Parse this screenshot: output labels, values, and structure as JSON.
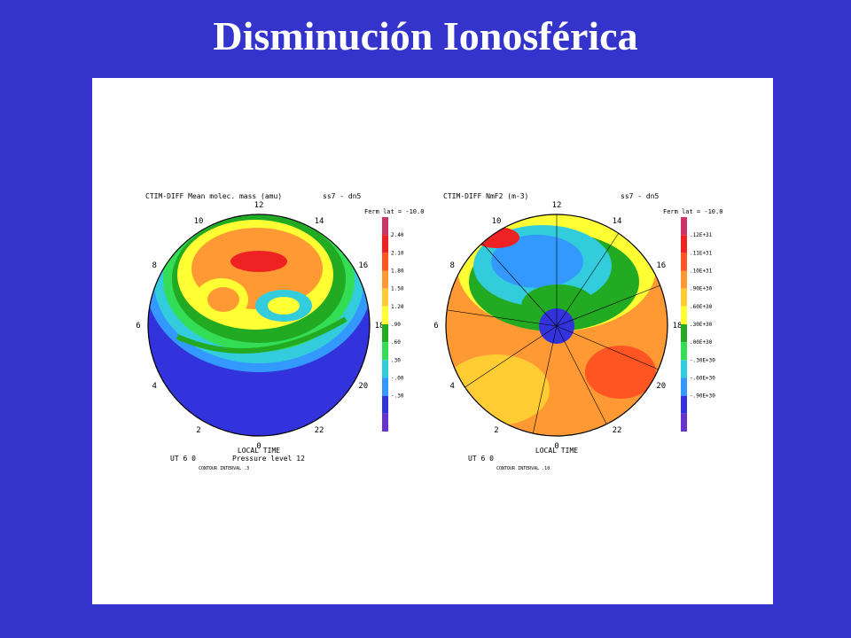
{
  "title": "Disminución Ionosférica",
  "panels": [
    {
      "header": "CTIM-DIFF  Mean molec. mass  (amu)",
      "case": "ss7 - dn5",
      "lat": "Ferm lat = -10.0",
      "hours": [
        "12",
        "14",
        "16",
        "18",
        "20",
        "22",
        "0",
        "2",
        "4",
        "6",
        "8",
        "10"
      ],
      "xlabel": "LOCAL TIME",
      "ut": "UT   6 0",
      "level": "Pressure level 12",
      "colorbar": [
        "2.40",
        "2.10",
        "1.80",
        "1.50",
        "1.20",
        ".90",
        ".60",
        ".30",
        "-.00",
        "-.30"
      ],
      "footer": "CONTOUR INTERVAL .3"
    },
    {
      "header": "CTIM-DIFF  NmF2   (m-3)",
      "case": "ss7 - dn5",
      "lat": "Ferm lat = -10.0",
      "hours": [
        "12",
        "14",
        "16",
        "18",
        "20",
        "22",
        "0",
        "2",
        "4",
        "6",
        "8",
        "10"
      ],
      "xlabel": "LOCAL TIME",
      "ut": "UT   6 0",
      "colorbar": [
        ".12E+31",
        ".11E+31",
        ".10E+31",
        ".90E+30",
        ".60E+30",
        ".30E+30",
        ".00E+30",
        "-.30E+30",
        "-.60E+30",
        "-.90E+30"
      ],
      "footer": "CONTOUR INTERVAL .10"
    }
  ]
}
